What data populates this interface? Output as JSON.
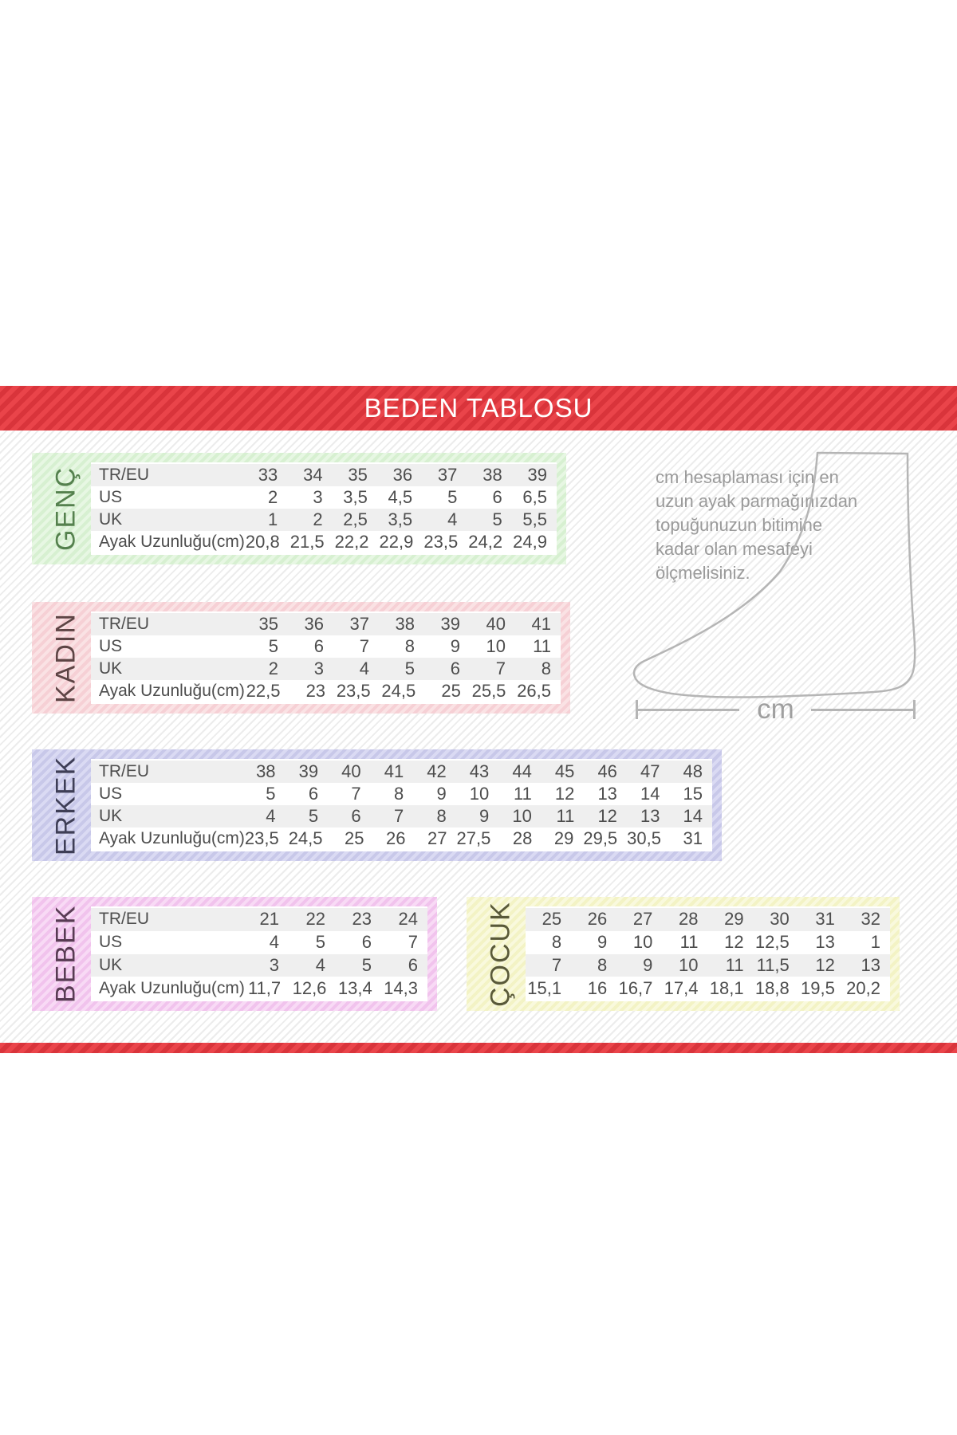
{
  "title": "BEDEN TABLOSU",
  "note": {
    "lines": [
      "cm hesaplaması için en",
      "uzun ayak parmağınızdan",
      "topuğunuzun bitimine",
      "kadar olan mesafeyi",
      "ölçmelisiniz."
    ]
  },
  "measure": {
    "label": "cm"
  },
  "colors": {
    "header_red": "#e9383f",
    "table_text": "#4d4d4d",
    "note_text": "#9a9a9a",
    "genc_frame": "#d7f0d1",
    "genc_label_text": "#55814e",
    "kadin_frame": "#f6d0d5",
    "kadin_label_text": "#5d4444",
    "erkek_frame": "#c8c8e9",
    "erkek_label_text": "#3e3e56",
    "bebek_frame": "#f1c3ed",
    "bebek_label_text": "#583b53",
    "cocuk_frame": "#f3f3c5",
    "cocuk_label_text": "#595939"
  },
  "chart_data": [
    {
      "type": "table",
      "label": "GENÇ",
      "row_labels": [
        "TR/EU",
        "US",
        "UK",
        "Ayak Uzunluğu(cm)"
      ],
      "rows": [
        [
          "33",
          "34",
          "35",
          "36",
          "37",
          "38",
          "39"
        ],
        [
          "2",
          "3",
          "3,5",
          "4,5",
          "5",
          "6",
          "6,5"
        ],
        [
          "1",
          "2",
          "2,5",
          "3,5",
          "4",
          "5",
          "5,5"
        ],
        [
          "20,8",
          "21,5",
          "22,2",
          "22,9",
          "23,5",
          "24,2",
          "24,9"
        ]
      ]
    },
    {
      "type": "table",
      "label": "KADIN",
      "row_labels": [
        "TR/EU",
        "US",
        "UK",
        "Ayak Uzunluğu(cm)"
      ],
      "rows": [
        [
          "35",
          "36",
          "37",
          "38",
          "39",
          "40",
          "41"
        ],
        [
          "5",
          "6",
          "7",
          "8",
          "9",
          "10",
          "11"
        ],
        [
          "2",
          "3",
          "4",
          "5",
          "6",
          "7",
          "8"
        ],
        [
          "22,5",
          "23",
          "23,5",
          "24,5",
          "25",
          "25,5",
          "26,5"
        ]
      ]
    },
    {
      "type": "table",
      "label": "ERKEK",
      "row_labels": [
        "TR/EU",
        "US",
        "UK",
        "Ayak Uzunluğu(cm)"
      ],
      "rows": [
        [
          "38",
          "39",
          "40",
          "41",
          "42",
          "43",
          "44",
          "45",
          "46",
          "47",
          "48"
        ],
        [
          "5",
          "6",
          "7",
          "8",
          "9",
          "10",
          "11",
          "12",
          "13",
          "14",
          "15"
        ],
        [
          "4",
          "5",
          "6",
          "7",
          "8",
          "9",
          "10",
          "11",
          "12",
          "13",
          "14"
        ],
        [
          "23,5",
          "24,5",
          "25",
          "26",
          "27",
          "27,5",
          "28",
          "29",
          "29,5",
          "30,5",
          "31"
        ]
      ]
    },
    {
      "type": "table",
      "label": "BEBEK",
      "row_labels": [
        "TR/EU",
        "US",
        "UK",
        "Ayak Uzunluğu(cm)"
      ],
      "rows": [
        [
          "21",
          "22",
          "23",
          "24"
        ],
        [
          "4",
          "5",
          "6",
          "7"
        ],
        [
          "3",
          "4",
          "5",
          "6"
        ],
        [
          "11,7",
          "12,6",
          "13,4",
          "14,3"
        ]
      ]
    },
    {
      "type": "table",
      "label": "ÇOCUK",
      "row_labels": null,
      "rows": [
        [
          "25",
          "26",
          "27",
          "28",
          "29",
          "30",
          "31",
          "32"
        ],
        [
          "8",
          "9",
          "10",
          "11",
          "12",
          "12,5",
          "13",
          "1"
        ],
        [
          "7",
          "8",
          "9",
          "10",
          "11",
          "11,5",
          "12",
          "13"
        ],
        [
          "15,1",
          "16",
          "16,7",
          "17,4",
          "18,1",
          "18,8",
          "19,5",
          "20,2"
        ]
      ]
    }
  ]
}
